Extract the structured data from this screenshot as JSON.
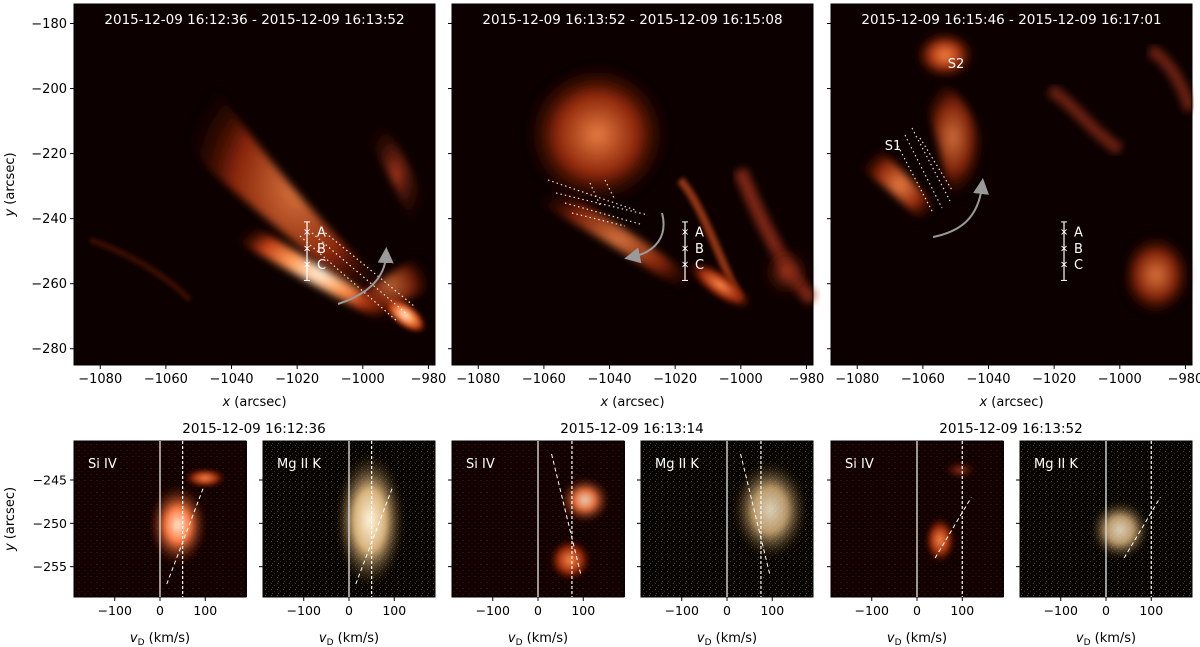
{
  "figure": {
    "top_panels": [
      {
        "title": "2015-12-09 16:12:36 - 2015-12-09 16:13:52",
        "xlabel": "x (arcsec)",
        "ylabel": "y (arcsec)",
        "marker_labels": [
          "A",
          "B",
          "C"
        ],
        "region_labels": []
      },
      {
        "title": "2015-12-09 16:13:52 - 2015-12-09 16:15:08",
        "xlabel": "x (arcsec)",
        "ylabel": "",
        "marker_labels": [
          "A",
          "B",
          "C"
        ],
        "region_labels": []
      },
      {
        "title": "2015-12-09 16:15:46 - 2015-12-09 16:17:01",
        "xlabel": "x (arcsec)",
        "ylabel": "",
        "marker_labels": [
          "A",
          "B",
          "C"
        ],
        "region_labels": [
          "S1",
          "S2"
        ]
      }
    ],
    "bottom_groups": [
      {
        "title": "2015-12-09 16:12:36",
        "panels": [
          {
            "label": "Si IV",
            "color": "#c8321a"
          },
          {
            "label": "Mg II K",
            "color": "#c9a270"
          }
        ]
      },
      {
        "title": "2015-12-09 16:13:14",
        "panels": [
          {
            "label": "Si IV",
            "color": "#c8321a"
          },
          {
            "label": "Mg II K",
            "color": "#c9a270"
          }
        ]
      },
      {
        "title": "2015-12-09 16:13:52",
        "panels": [
          {
            "label": "Si IV",
            "color": "#c8321a"
          },
          {
            "label": "Mg II K",
            "color": "#c9a270"
          }
        ]
      }
    ],
    "bottom_xlabel": "vD (km/s)",
    "bottom_ylabel": "y (arcsec)"
  },
  "chart_data": [
    {
      "type": "heatmap",
      "panel": "top",
      "x_ticks": [
        -1080,
        -1060,
        -1040,
        -1020,
        -1000,
        -980
      ],
      "y_ticks": [
        -180,
        -200,
        -220,
        -240,
        -260,
        -280
      ],
      "xlim": [
        -1088,
        -978
      ],
      "ylim": [
        -285,
        -174
      ],
      "slit_x": -1017,
      "slit_yrange": [
        -241,
        -259
      ],
      "marker_y": {
        "A": -244,
        "B": -249,
        "C": -254
      },
      "colormap": "red-temperature",
      "grid": false
    },
    {
      "type": "heatmap",
      "panel": "bottom",
      "x_ticks": [
        -100,
        0,
        100
      ],
      "y_ticks": [
        -245,
        -250,
        -255
      ],
      "xlim": [
        -190,
        190
      ],
      "ylim": [
        -258.5,
        -240.5
      ],
      "reference_lines": [
        {
          "group": 0,
          "rest_v": 0,
          "shift_v": 50
        },
        {
          "group": 1,
          "rest_v": 0,
          "shift_v": 75
        },
        {
          "group": 2,
          "rest_v": 0,
          "shift_v": 100
        }
      ],
      "grid": false
    }
  ]
}
